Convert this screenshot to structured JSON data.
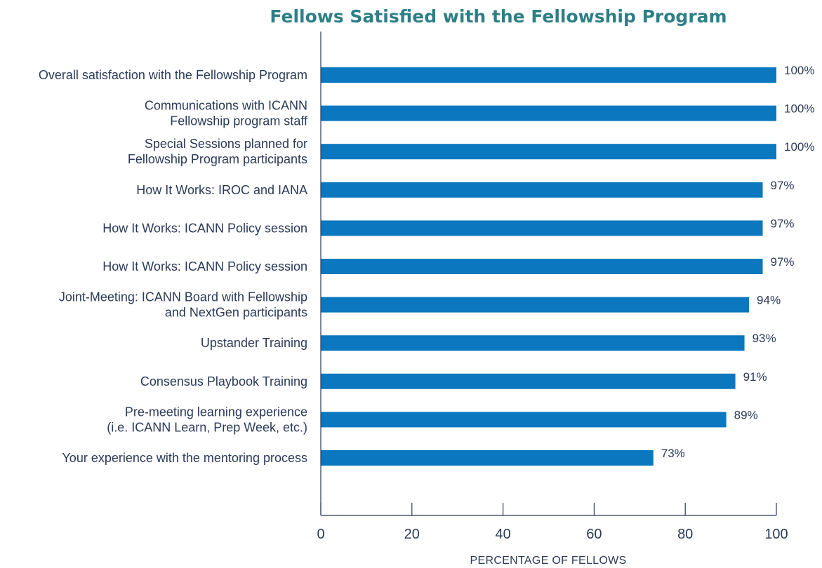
{
  "chart_data": {
    "type": "bar",
    "orientation": "horizontal",
    "title": "Fellows Satisfied with the Fellowship Program",
    "xlabel": "PERCENTAGE OF FELLOWS",
    "ylabel": "",
    "xlim": [
      0,
      100
    ],
    "xticks": [
      "0",
      "20",
      "40",
      "60",
      "80",
      "100"
    ],
    "grid": false,
    "categories": [
      [
        "Overall satisfaction with the Fellowship Program"
      ],
      [
        "Communications with ICANN",
        "Fellowship program staff"
      ],
      [
        "Special Sessions planned for",
        "Fellowship Program participants"
      ],
      [
        "How It Works: IROC and IANA"
      ],
      [
        "How It Works: ICANN Policy session"
      ],
      [
        "How It Works: ICANN Policy session"
      ],
      [
        "Joint-Meeting: ICANN Board with Fellowship",
        "and NextGen participants"
      ],
      [
        "Upstander Training"
      ],
      [
        "Consensus Playbook Training"
      ],
      [
        "Pre-meeting learning experience",
        "(i.e. ICANN Learn, Prep Week, etc.)"
      ],
      [
        "Your experience with the mentoring process"
      ]
    ],
    "values": [
      100,
      100,
      100,
      97,
      97,
      97,
      94,
      93,
      91,
      89,
      73
    ],
    "value_labels": [
      "100%",
      "100%",
      "100%",
      "97%",
      "97%",
      "97%",
      "94%",
      "93%",
      "91%",
      "89%",
      "73%"
    ],
    "colors": {
      "bar": "#0b77bf",
      "title": "#2d7f86",
      "text": "#2a3a58",
      "axis": "#2a3a58"
    }
  }
}
